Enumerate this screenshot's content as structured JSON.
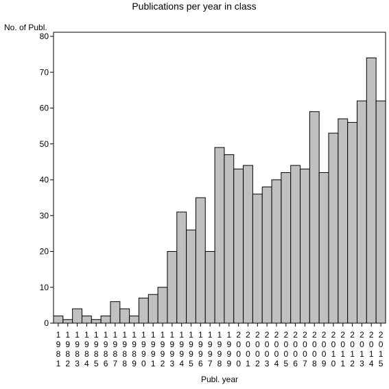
{
  "chart_data": {
    "type": "bar",
    "title": "Publications per year in class",
    "ylabel": "No. of Publ.",
    "xlabel": "Publ. year",
    "ylim": [
      0,
      80
    ],
    "yticks": [
      0,
      10,
      20,
      30,
      40,
      50,
      60,
      70,
      80
    ],
    "grid": false,
    "bar_color": "#c0c0c0",
    "categories": [
      "1981",
      "1982",
      "1983",
      "1984",
      "1985",
      "1986",
      "1987",
      "1988",
      "1989",
      "1990",
      "1991",
      "1992",
      "1993",
      "1994",
      "1995",
      "1996",
      "1997",
      "1998",
      "1999",
      "2000",
      "2001",
      "2002",
      "2003",
      "2004",
      "2005",
      "2006",
      "2007",
      "2008",
      "2009",
      "2010",
      "2011",
      "2012",
      "2013",
      "2014",
      "2015"
    ],
    "values": [
      2,
      1,
      4,
      2,
      1,
      2,
      6,
      4,
      2,
      7,
      8,
      10,
      20,
      31,
      26,
      35,
      20,
      49,
      47,
      43,
      44,
      36,
      38,
      40,
      42,
      44,
      43,
      59,
      42,
      53,
      57,
      56,
      62,
      74,
      62
    ]
  }
}
